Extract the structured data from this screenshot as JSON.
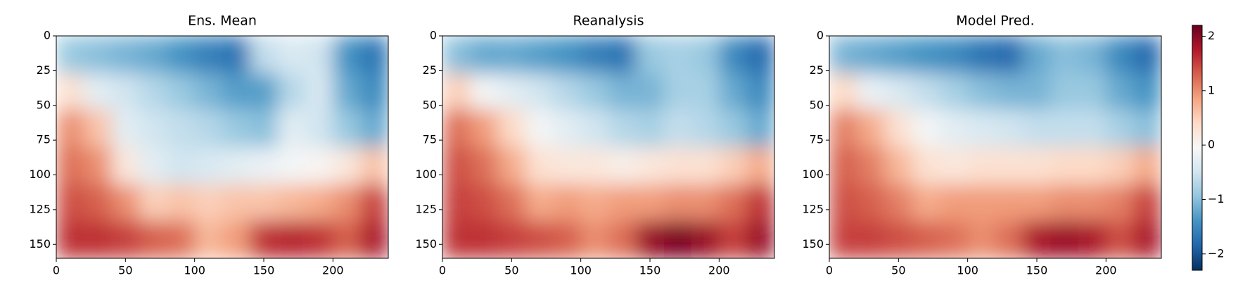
{
  "chart_data": [
    {
      "type": "heatmap",
      "title": "Ens. Mean",
      "xbins": [
        0,
        20,
        40,
        60,
        80,
        100,
        120,
        140,
        160,
        180,
        200,
        220,
        240
      ],
      "ybins": [
        0,
        27,
        53,
        80,
        107,
        133,
        160
      ],
      "values": [
        [
          -0.9,
          -1.0,
          -1.1,
          -1.2,
          -1.4,
          -1.6,
          -1.7,
          -0.6,
          -0.4,
          -0.5,
          -1.4,
          -1.7
        ],
        [
          0.3,
          -0.3,
          -0.5,
          -0.7,
          -0.9,
          -1.1,
          -1.3,
          -1.3,
          -0.7,
          -0.4,
          -1.2,
          -1.5
        ],
        [
          1.0,
          0.6,
          -0.3,
          -0.5,
          -0.6,
          -0.7,
          -0.9,
          -1.0,
          -0.3,
          -0.5,
          -0.9,
          -1.2
        ],
        [
          1.2,
          1.0,
          0.2,
          -0.3,
          -0.5,
          -0.4,
          -0.3,
          -0.2,
          -0.1,
          0.0,
          0.2,
          0.6
        ],
        [
          1.4,
          1.3,
          1.0,
          0.5,
          0.6,
          0.5,
          0.6,
          0.6,
          0.7,
          0.8,
          1.0,
          1.5
        ],
        [
          1.6,
          1.6,
          1.5,
          1.3,
          1.2,
          0.7,
          0.9,
          1.6,
          1.7,
          1.6,
          1.3,
          1.8
        ]
      ],
      "xlim": [
        0,
        240
      ],
      "ylim": [
        160,
        0
      ],
      "xticks": [
        0,
        50,
        100,
        150,
        200
      ],
      "yticks": [
        0,
        25,
        50,
        75,
        100,
        125,
        150
      ]
    },
    {
      "type": "heatmap",
      "title": "Reanalysis",
      "xbins": [
        0,
        20,
        40,
        60,
        80,
        100,
        120,
        140,
        160,
        180,
        200,
        220,
        240
      ],
      "ybins": [
        0,
        27,
        53,
        80,
        107,
        133,
        160
      ],
      "values": [
        [
          -1.0,
          -1.2,
          -1.2,
          -1.3,
          -1.4,
          -1.6,
          -1.7,
          -0.9,
          -0.8,
          -0.9,
          -1.5,
          -1.8
        ],
        [
          0.5,
          -0.1,
          -0.3,
          -0.5,
          -0.7,
          -0.9,
          -1.1,
          -1.1,
          -0.8,
          -0.8,
          -1.2,
          -1.5
        ],
        [
          1.2,
          0.9,
          0.4,
          -0.1,
          -0.3,
          -0.5,
          -0.7,
          -0.8,
          -0.6,
          -0.7,
          -0.9,
          -1.2
        ],
        [
          1.4,
          1.2,
          0.8,
          0.3,
          0.2,
          0.2,
          0.1,
          0.2,
          0.3,
          0.3,
          0.5,
          0.8
        ],
        [
          1.5,
          1.4,
          1.2,
          0.8,
          0.9,
          0.8,
          0.9,
          0.9,
          1.0,
          1.0,
          1.2,
          1.6
        ],
        [
          1.6,
          1.6,
          1.5,
          1.4,
          1.3,
          1.0,
          1.2,
          1.9,
          2.1,
          1.9,
          1.5,
          1.9
        ]
      ],
      "xlim": [
        0,
        240
      ],
      "ylim": [
        160,
        0
      ],
      "xticks": [
        0,
        50,
        100,
        150,
        200
      ],
      "yticks": [
        0,
        25,
        50,
        75,
        100,
        125,
        150
      ]
    },
    {
      "type": "heatmap",
      "title": "Model Pred.",
      "xbins": [
        0,
        20,
        40,
        60,
        80,
        100,
        120,
        140,
        160,
        180,
        200,
        220,
        240
      ],
      "ybins": [
        0,
        27,
        53,
        80,
        107,
        133,
        160
      ],
      "values": [
        [
          -1.1,
          -1.2,
          -1.3,
          -1.4,
          -1.5,
          -1.7,
          -1.8,
          -1.2,
          -1.0,
          -1.1,
          -1.5,
          -1.8
        ],
        [
          0.4,
          -0.2,
          -0.4,
          -0.6,
          -0.8,
          -1.0,
          -1.1,
          -1.1,
          -0.9,
          -0.9,
          -1.2,
          -1.4
        ],
        [
          1.1,
          0.8,
          0.3,
          -0.1,
          -0.3,
          -0.4,
          -0.5,
          -0.6,
          -0.6,
          -0.6,
          -0.8,
          -1.0
        ],
        [
          1.3,
          1.1,
          0.7,
          0.3,
          0.2,
          0.3,
          0.3,
          0.3,
          0.4,
          0.4,
          0.5,
          0.8
        ],
        [
          1.4,
          1.3,
          1.1,
          0.8,
          0.9,
          0.9,
          0.9,
          0.9,
          1.0,
          1.0,
          1.1,
          1.5
        ],
        [
          1.5,
          1.5,
          1.4,
          1.3,
          1.2,
          1.0,
          1.2,
          1.8,
          1.9,
          1.8,
          1.4,
          1.8
        ]
      ],
      "xlim": [
        0,
        240
      ],
      "ylim": [
        160,
        0
      ],
      "xticks": [
        0,
        50,
        100,
        150,
        200
      ],
      "yticks": [
        0,
        25,
        50,
        75,
        100,
        125,
        150
      ]
    },
    {
      "type": "colorbar",
      "colormap": "RdBu_r",
      "ylim": [
        -2.3,
        2.2
      ],
      "yticks": [
        {
          "value": -2,
          "label": "−2"
        },
        {
          "value": -1,
          "label": "−1"
        },
        0,
        1,
        2
      ]
    }
  ]
}
